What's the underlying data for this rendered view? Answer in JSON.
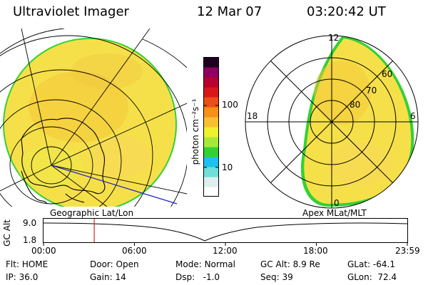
{
  "header": {
    "instrument": "Ultraviolet Imager",
    "date": "12 Mar 07",
    "time": "03:20:42 UT"
  },
  "colorbar": {
    "unit_label": "photon cm⁻²s⁻¹",
    "ticks": [
      "100",
      "10"
    ],
    "scale": "log",
    "colors": [
      "#ffffff",
      "#dfeff0",
      "#6fe0d8",
      "#1ec0f0",
      "#32d232",
      "#a8e83a",
      "#eef030",
      "#f8c030",
      "#f89018",
      "#e85018",
      "#d81818",
      "#b80030",
      "#900060",
      "#200020"
    ]
  },
  "left_panel": {
    "title": "Geographic Lat/Lon",
    "aurora_color": "#f6e04a",
    "edge_color": "#32d232"
  },
  "right_panel": {
    "title": "Apex MLat/MLT",
    "mlt_labels": {
      "top": "12",
      "left": "18",
      "right": "6",
      "bottom": "0"
    },
    "mlat_labels": [
      "60",
      "70",
      "80"
    ]
  },
  "timeline": {
    "y_label": "GC Alt",
    "y_ticks": [
      "9.0",
      "1.8"
    ],
    "x_ticks": [
      "00:00",
      "06:00",
      "12:00",
      "18:00",
      "23:59"
    ],
    "marker_time_hours": 3.345,
    "marker_color": "#e02020"
  },
  "status": {
    "flt": {
      "label": "Flt:",
      "value": "HOME"
    },
    "ip": {
      "label": "IP:",
      "value": "36.0"
    },
    "door": {
      "label": "Door:",
      "value": "Open"
    },
    "gain": {
      "label": "Gain:",
      "value": "14"
    },
    "mode": {
      "label": "Mode:",
      "value": "Normal"
    },
    "dsp": {
      "label": "Dsp:",
      "value": "-1.0"
    },
    "gc_alt": {
      "label": "GC Alt:",
      "value": "8.9 Re"
    },
    "seq": {
      "label": "Seq:",
      "value": "39"
    },
    "glat": {
      "label": "GLat:",
      "value": "-64.1"
    },
    "glon": {
      "label": "GLon:",
      "value": "72.4"
    }
  }
}
